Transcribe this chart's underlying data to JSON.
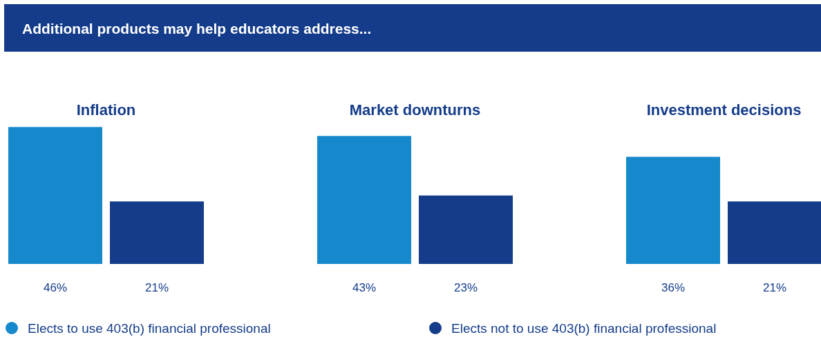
{
  "chart_data": {
    "type": "bar",
    "title": "Additional products may help educators address...",
    "categories": [
      "Inflation",
      "Market downturns",
      "Investment decisions"
    ],
    "series": [
      {
        "name": "Elects to use 403(b) financial professional",
        "color": "#1589cc",
        "values": [
          46,
          43,
          36
        ],
        "value_labels": [
          "46%",
          "43%",
          "36%"
        ]
      },
      {
        "name": "Elects not to use 403(b) financial professional",
        "color": "#143c8a",
        "values": [
          21,
          23,
          21
        ],
        "value_labels": [
          "21%",
          "23%",
          "21%"
        ]
      }
    ],
    "legend": "bottom"
  }
}
